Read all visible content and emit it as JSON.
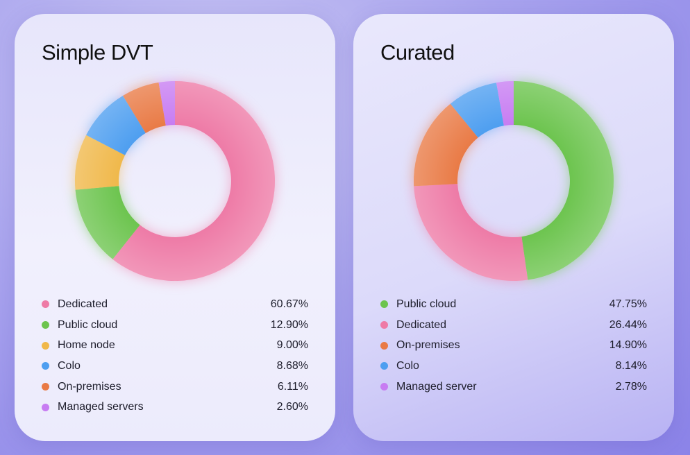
{
  "chart_data": [
    {
      "type": "pie",
      "subtype": "donut",
      "title": "Simple DVT",
      "categories": [
        "Dedicated",
        "Public cloud",
        "Home node",
        "Colo",
        "On-premises",
        "Managed servers"
      ],
      "values": [
        60.67,
        12.9,
        9.0,
        8.68,
        6.11,
        2.6
      ],
      "display_values": [
        "60.67%",
        "12.90%",
        "9.00%",
        "8.68%",
        "6.11%",
        "2.60%"
      ],
      "colors": [
        "#ee7aa6",
        "#6cc44e",
        "#f0b84a",
        "#4d9ef0",
        "#e97a45",
        "#c77cf2"
      ],
      "legend_position": "bottom"
    },
    {
      "type": "pie",
      "subtype": "donut",
      "title": "Curated",
      "categories": [
        "Public cloud",
        "Dedicated",
        "On-premises",
        "Colo",
        "Managed server"
      ],
      "values": [
        47.75,
        26.44,
        14.9,
        8.14,
        2.78
      ],
      "display_values": [
        "47.75%",
        "26.44%",
        "14.90%",
        "8.14%",
        "2.78%"
      ],
      "colors": [
        "#6cc44e",
        "#ee7aa6",
        "#e97a45",
        "#4d9ef0",
        "#c77cf2"
      ],
      "legend_position": "bottom"
    }
  ]
}
